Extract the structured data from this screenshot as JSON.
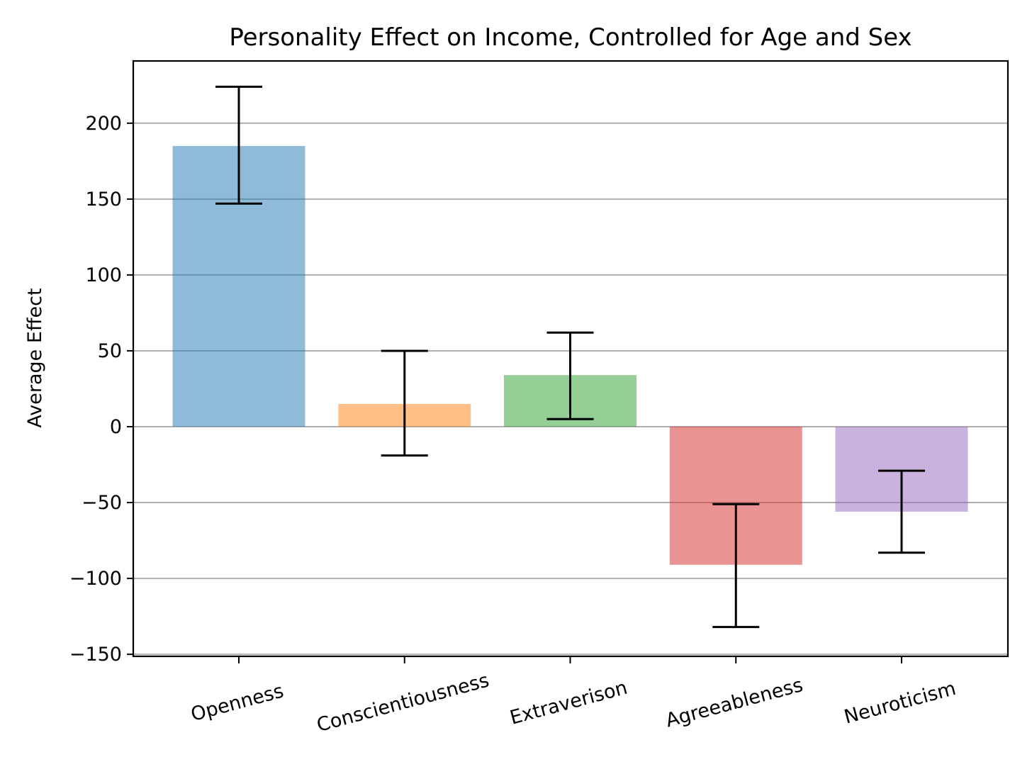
{
  "chart_data": {
    "type": "bar",
    "title": "Personality Effect on Income, Controlled for Age and Sex",
    "xlabel": "",
    "ylabel": "Average Effect",
    "categories": [
      "Openness",
      "Conscientiousness",
      "Extraverison",
      "Agreeableness",
      "Neuroticism"
    ],
    "values": [
      185,
      15,
      34,
      -91,
      -56
    ],
    "error_low": [
      147,
      -19,
      5,
      -132,
      -83
    ],
    "error_high": [
      224,
      50,
      62,
      -51,
      -29
    ],
    "colors": [
      "#1f77b4",
      "#ff7f0e",
      "#2ca02c",
      "#d62728",
      "#9467bd"
    ],
    "ylim": [
      -150,
      240
    ],
    "yticks": [
      -150,
      -100,
      -50,
      0,
      50,
      100,
      150,
      200
    ],
    "ytick_labels": [
      "−150",
      "−100",
      "−50",
      "0",
      "50",
      "100",
      "150",
      "200"
    ],
    "grid": "y-major",
    "xtick_rotation": -15
  }
}
